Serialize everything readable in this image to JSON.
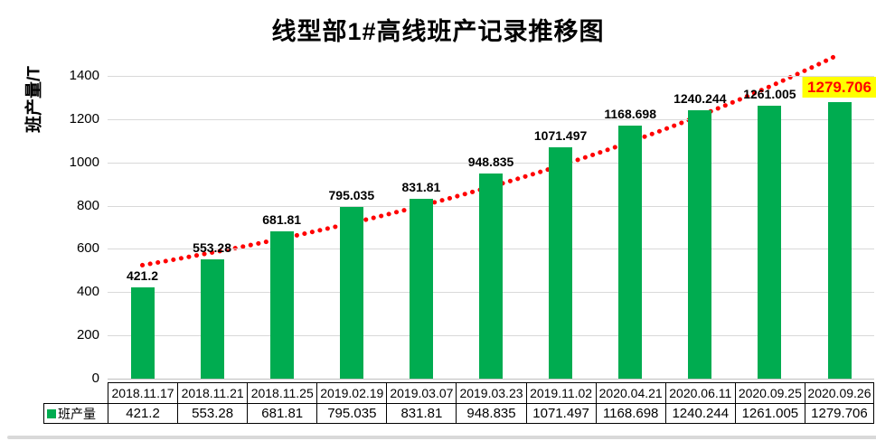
{
  "title": "线型部1#高线班产记录推移图",
  "chart_data": {
    "type": "bar",
    "title": "线型部1#高线班产记录推移图",
    "ylabel": "班产量/T",
    "xlabel": "",
    "categories": [
      "2018.11.17",
      "2018.11.21",
      "2018.11.25",
      "2019.02.19",
      "2019.03.07",
      "2019.03.23",
      "2019.11.02",
      "2020.04.21",
      "2020.06.11",
      "2020.09.25",
      "2020.09.26"
    ],
    "series": [
      {
        "name": "班产量",
        "values": [
          421.2,
          553.28,
          681.81,
          795.035,
          831.81,
          948.835,
          1071.497,
          1168.698,
          1240.244,
          1261.005,
          1279.706
        ]
      }
    ],
    "data_labels": [
      "421.2",
      "553.28",
      "681.81",
      "795.035",
      "831.81",
      "948.835",
      "1071.497",
      "1168.698",
      "1240.244",
      "1261.005",
      "1279.706"
    ],
    "ylim": [
      0,
      1500
    ],
    "yticks": [
      0,
      200,
      400,
      600,
      800,
      1000,
      1200,
      1400
    ],
    "grid": true,
    "legend_position": "data-table-left",
    "bar_color": "#00AC50",
    "trendline": {
      "type": "exponential",
      "style": "dotted",
      "color": "#FF0000"
    },
    "highlight_last_label": {
      "index": 10,
      "background": "#FFFF00",
      "text_color": "#FF0000"
    },
    "data_table_shown": true
  },
  "legend": {
    "label": "班产量",
    "swatch_color": "#00AC50"
  }
}
